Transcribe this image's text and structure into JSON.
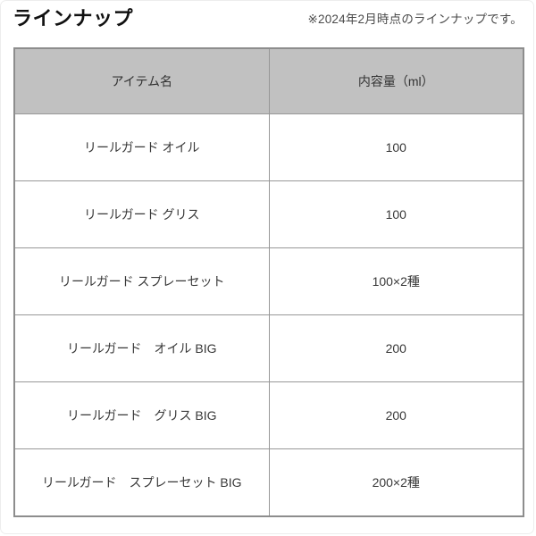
{
  "page": {
    "title": "ラインナップ",
    "note": "※2024年2月時点のラインナップです。"
  },
  "table": {
    "headers": [
      "アイテム名",
      "内容量（ml）"
    ],
    "rows": [
      {
        "name": "リールガード オイル",
        "volume": "100"
      },
      {
        "name": "リールガード グリス",
        "volume": "100"
      },
      {
        "name": "リールガード スプレーセット",
        "volume": "100×2種"
      },
      {
        "name": "リールガード　オイル BIG",
        "volume": "200"
      },
      {
        "name": "リールガード　グリス BIG",
        "volume": "200"
      },
      {
        "name": "リールガード　スプレーセット BIG",
        "volume": "200×2種"
      }
    ],
    "colors": {
      "header_bg": "#c1c1c1",
      "grid_border": "#979797",
      "outer_border": "#8d8d8d",
      "text": "#383838"
    }
  }
}
